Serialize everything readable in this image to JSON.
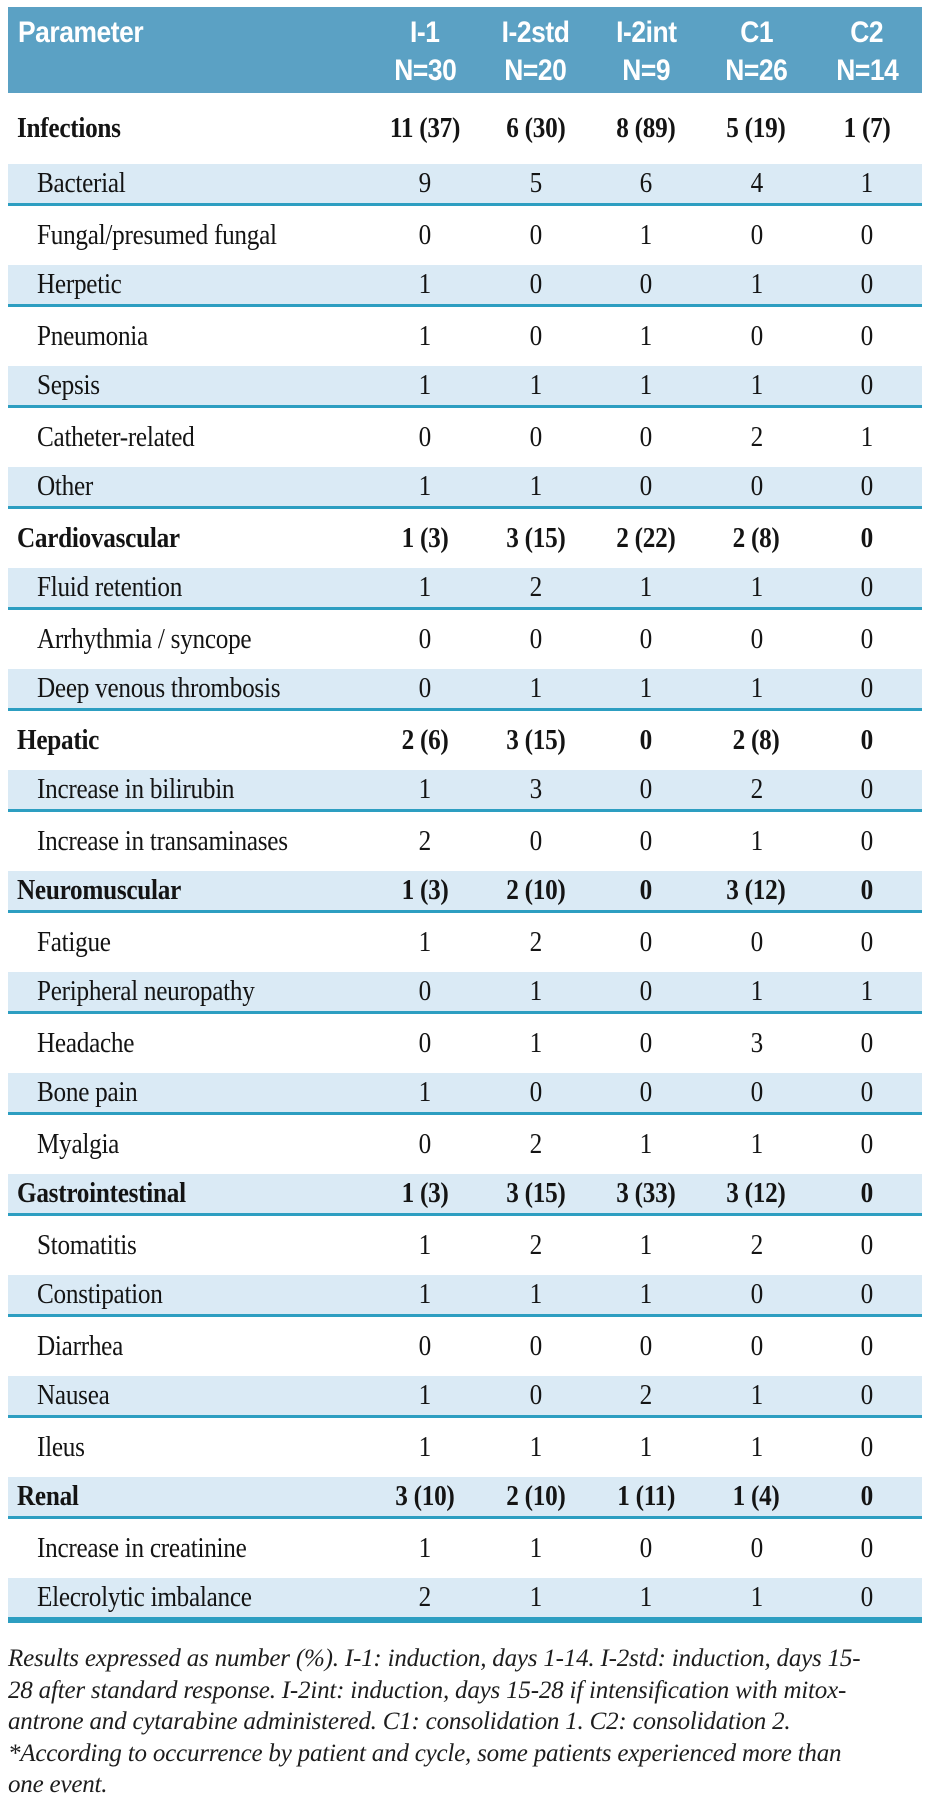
{
  "table": {
    "columns": [
      {
        "label": "Parameter",
        "n": ""
      },
      {
        "label": "I-1",
        "n": "N=30"
      },
      {
        "label": "I-2std",
        "n": "N=20"
      },
      {
        "label": "I-2int",
        "n": "N=9"
      },
      {
        "label": "C1",
        "n": "N=26"
      },
      {
        "label": "C2",
        "n": "N=14"
      }
    ],
    "rows": [
      {
        "label": "Infections",
        "bold": true,
        "values": [
          "11 (37)",
          "6 (30)",
          "8 (89)",
          "5 (19)",
          "1 (7)"
        ]
      },
      {
        "label": "Bacterial",
        "bold": false,
        "values": [
          "9",
          "5",
          "6",
          "4",
          "1"
        ]
      },
      {
        "label": "Fungal/presumed fungal",
        "bold": false,
        "values": [
          "0",
          "0",
          "1",
          "0",
          "0"
        ]
      },
      {
        "label": "Herpetic",
        "bold": false,
        "values": [
          "1",
          "0",
          "0",
          "1",
          "0"
        ]
      },
      {
        "label": "Pneumonia",
        "bold": false,
        "values": [
          "1",
          "0",
          "1",
          "0",
          "0"
        ]
      },
      {
        "label": "Sepsis",
        "bold": false,
        "values": [
          "1",
          "1",
          "1",
          "1",
          "0"
        ]
      },
      {
        "label": "Catheter-related",
        "bold": false,
        "values": [
          "0",
          "0",
          "0",
          "2",
          "1"
        ]
      },
      {
        "label": "Other",
        "bold": false,
        "values": [
          "1",
          "1",
          "0",
          "0",
          "0"
        ]
      },
      {
        "label": "Cardiovascular",
        "bold": true,
        "values": [
          "1 (3)",
          "3 (15)",
          "2 (22)",
          "2 (8)",
          "0"
        ]
      },
      {
        "label": "Fluid retention",
        "bold": false,
        "values": [
          "1",
          "2",
          "1",
          "1",
          "0"
        ]
      },
      {
        "label": "Arrhythmia / syncope",
        "bold": false,
        "values": [
          "0",
          "0",
          "0",
          "0",
          "0"
        ]
      },
      {
        "label": "Deep venous thrombosis",
        "bold": false,
        "values": [
          "0",
          "1",
          "1",
          "1",
          "0"
        ]
      },
      {
        "label": "Hepatic",
        "bold": true,
        "values": [
          "2 (6)",
          "3 (15)",
          "0",
          "2 (8)",
          "0"
        ]
      },
      {
        "label": "Increase in bilirubin",
        "bold": false,
        "values": [
          "1",
          "3",
          "0",
          "2",
          "0"
        ]
      },
      {
        "label": "Increase in transaminases",
        "bold": false,
        "values": [
          "2",
          "0",
          "0",
          "1",
          "0"
        ]
      },
      {
        "label": "Neuromuscular",
        "bold": true,
        "values": [
          "1 (3)",
          "2 (10)",
          "0",
          "3 (12)",
          "0"
        ]
      },
      {
        "label": "Fatigue",
        "bold": false,
        "values": [
          "1",
          "2",
          "0",
          "0",
          "0"
        ]
      },
      {
        "label": "Peripheral neuropathy",
        "bold": false,
        "values": [
          "0",
          "1",
          "0",
          "1",
          "1"
        ]
      },
      {
        "label": "Headache",
        "bold": false,
        "values": [
          "0",
          "1",
          "0",
          "3",
          "0"
        ]
      },
      {
        "label": "Bone pain",
        "bold": false,
        "values": [
          "1",
          "0",
          "0",
          "0",
          "0"
        ]
      },
      {
        "label": "Myalgia",
        "bold": false,
        "values": [
          "0",
          "2",
          "1",
          "1",
          "0"
        ]
      },
      {
        "label": "Gastrointestinal",
        "bold": true,
        "values": [
          "1 (3)",
          "3 (15)",
          "3 (33)",
          "3 (12)",
          "0"
        ]
      },
      {
        "label": "Stomatitis",
        "bold": false,
        "values": [
          "1",
          "2",
          "1",
          "2",
          "0"
        ]
      },
      {
        "label": "Constipation",
        "bold": false,
        "values": [
          "1",
          "1",
          "1",
          "0",
          "0"
        ]
      },
      {
        "label": "Diarrhea",
        "bold": false,
        "values": [
          "0",
          "0",
          "0",
          "0",
          "0"
        ]
      },
      {
        "label": "Nausea",
        "bold": false,
        "values": [
          "1",
          "0",
          "2",
          "1",
          "0"
        ]
      },
      {
        "label": "Ileus",
        "bold": false,
        "values": [
          "1",
          "1",
          "1",
          "1",
          "0"
        ]
      },
      {
        "label": "Renal",
        "bold": true,
        "values": [
          "3 (10)",
          "2 (10)",
          "1 (11)",
          "1 (4)",
          "0"
        ]
      },
      {
        "label": "Increase in creatinine",
        "bold": false,
        "values": [
          "1",
          "1",
          "0",
          "0",
          "0"
        ]
      },
      {
        "label": "Elecrolytic imbalance",
        "bold": false,
        "values": [
          "2",
          "1",
          "1",
          "1",
          "0"
        ]
      }
    ]
  },
  "footnotes": {
    "lines": [
      "Results expressed as number (%). I-1: induction, days 1-14. I-2std: induction, days 15-",
      "28 after standard response. I-2int: induction, days 15-28 if intensification with mitox-",
      "antrone and cytarabine administered. C1: consolidation 1. C2: consolidation 2.",
      "*According to occurrence by patient and cycle, some patients experienced more than",
      "one event."
    ]
  },
  "colors": {
    "header_bg": "#5BA1C4",
    "header_text": "#FFFFFF",
    "row_shaded_bg": "#DAEAF5",
    "rule_teal": "#2D9EC1",
    "body_text": "#141414"
  }
}
